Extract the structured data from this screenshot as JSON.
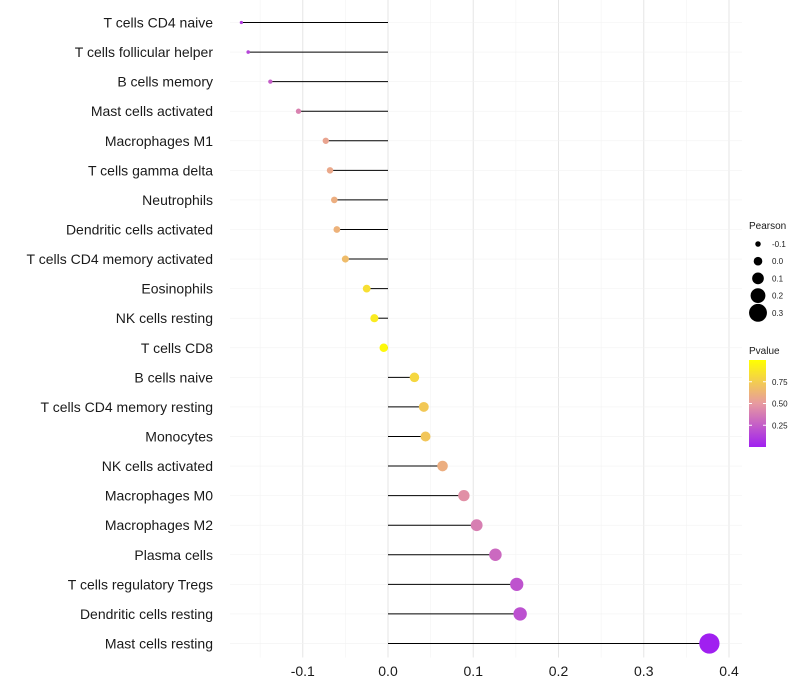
{
  "chart_data": {
    "type": "lollipop",
    "xlabel": "",
    "ylabel": "",
    "xlim": [
      -0.185,
      0.415
    ],
    "xticks": [
      {
        "value": -0.1,
        "label": "-0.1"
      },
      {
        "value": 0.0,
        "label": "0.0"
      },
      {
        "value": 0.1,
        "label": "0.1"
      },
      {
        "value": 0.2,
        "label": "0.2"
      },
      {
        "value": 0.3,
        "label": "0.3"
      },
      {
        "value": 0.4,
        "label": "0.4"
      }
    ],
    "grid": true,
    "baseline": 0.0,
    "points": [
      {
        "label": "T cells CD4 naive",
        "pearson": -0.172,
        "pvalue": 0.12
      },
      {
        "label": "T cells follicular helper",
        "pearson": -0.164,
        "pvalue": 0.15
      },
      {
        "label": "B cells memory",
        "pearson": -0.138,
        "pvalue": 0.25
      },
      {
        "label": "Mast cells activated",
        "pearson": -0.105,
        "pvalue": 0.4
      },
      {
        "label": "Macrophages M1",
        "pearson": -0.073,
        "pvalue": 0.55
      },
      {
        "label": "T cells gamma delta",
        "pearson": -0.068,
        "pvalue": 0.57
      },
      {
        "label": "Neutrophils",
        "pearson": -0.063,
        "pvalue": 0.6
      },
      {
        "label": "Dendritic cells activated",
        "pearson": -0.06,
        "pvalue": 0.62
      },
      {
        "label": "T cells CD4 memory activated",
        "pearson": -0.05,
        "pvalue": 0.67
      },
      {
        "label": "Eosinophils",
        "pearson": -0.025,
        "pvalue": 0.84
      },
      {
        "label": "NK cells resting",
        "pearson": -0.016,
        "pvalue": 0.9
      },
      {
        "label": "T cells CD8",
        "pearson": -0.005,
        "pvalue": 0.97
      },
      {
        "label": "B cells naive",
        "pearson": 0.031,
        "pvalue": 0.8
      },
      {
        "label": "T cells CD4 memory resting",
        "pearson": 0.042,
        "pvalue": 0.73
      },
      {
        "label": "Monocytes",
        "pearson": 0.044,
        "pvalue": 0.72
      },
      {
        "label": "NK cells activated",
        "pearson": 0.064,
        "pvalue": 0.6
      },
      {
        "label": "Macrophages M0",
        "pearson": 0.089,
        "pvalue": 0.46
      },
      {
        "label": "Macrophages M2",
        "pearson": 0.104,
        "pvalue": 0.39
      },
      {
        "label": "Plasma cells",
        "pearson": 0.126,
        "pvalue": 0.3
      },
      {
        "label": "T cells regulatory  Tregs",
        "pearson": 0.151,
        "pvalue": 0.21
      },
      {
        "label": "Dendritic cells resting",
        "pearson": 0.155,
        "pvalue": 0.2
      },
      {
        "label": "Mast cells resting",
        "pearson": 0.377,
        "pvalue": 0.001
      }
    ],
    "legend": {
      "position": "right",
      "size": {
        "title": "Pearson",
        "entries": [
          {
            "value": -0.1,
            "label": "-0.1"
          },
          {
            "value": 0.0,
            "label": "0.0"
          },
          {
            "value": 0.1,
            "label": "0.1"
          },
          {
            "value": 0.2,
            "label": "0.2"
          },
          {
            "value": 0.3,
            "label": "0.3"
          }
        ]
      },
      "color": {
        "title": "Pvalue",
        "range": [
          0.0,
          1.0
        ],
        "ticks": [
          {
            "value": 0.75,
            "label": "0.75"
          },
          {
            "value": 0.5,
            "label": "0.50"
          },
          {
            "value": 0.25,
            "label": "0.25"
          }
        ],
        "low_color": "#a020f0",
        "mid_color": "#e79aa0",
        "high_color": "#ffff00"
      }
    }
  }
}
